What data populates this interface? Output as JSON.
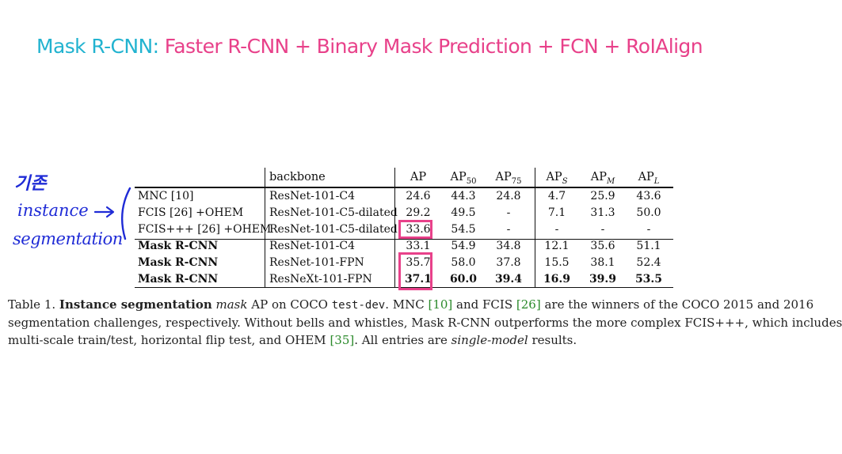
{
  "title": {
    "lead": "Mask R-CNN:",
    "rest": "Faster R-CNN + Binary Mask Prediction + FCN + RoIAlign"
  },
  "handnote": {
    "line1": "기존",
    "line2": "instance",
    "line3": "segmentation",
    "arrow": "→"
  },
  "table": {
    "header": {
      "method": "",
      "backbone": "backbone",
      "ap": "AP",
      "ap50": "AP50",
      "ap75": "AP75",
      "aps": "APS",
      "apm": "APM",
      "apl": "APL"
    },
    "rows": [
      {
        "method": "MNC [10]",
        "backbone": "ResNet-101-C4",
        "ap": "24.6",
        "ap50": "44.3",
        "ap75": "24.8",
        "aps": "4.7",
        "apm": "25.9",
        "apl": "43.6"
      },
      {
        "method": "FCIS [26] +OHEM",
        "backbone": "ResNet-101-C5-dilated",
        "ap": "29.2",
        "ap50": "49.5",
        "ap75": "-",
        "aps": "7.1",
        "apm": "31.3",
        "apl": "50.0"
      },
      {
        "method": "FCIS+++ [26] +OHEM",
        "backbone": "ResNet-101-C5-dilated",
        "ap": "33.6",
        "ap50": "54.5",
        "ap75": "-",
        "aps": "-",
        "apm": "-",
        "apl": "-"
      },
      {
        "method": "Mask R-CNN",
        "backbone": "ResNet-101-C4",
        "ap": "33.1",
        "ap50": "54.9",
        "ap75": "34.8",
        "aps": "12.1",
        "apm": "35.6",
        "apl": "51.1"
      },
      {
        "method": "Mask R-CNN",
        "backbone": "ResNet-101-FPN",
        "ap": "35.7",
        "ap50": "58.0",
        "ap75": "37.8",
        "aps": "15.5",
        "apm": "38.1",
        "apl": "52.4"
      },
      {
        "method": "Mask R-CNN",
        "backbone": "ResNeXt-101-FPN",
        "ap": "37.1",
        "ap50": "60.0",
        "ap75": "39.4",
        "aps": "16.9",
        "apm": "39.9",
        "apl": "53.5"
      }
    ]
  },
  "caption": {
    "label": "Table 1.",
    "heading": "Instance segmentation",
    "mask": "mask",
    "text1": "AP on COCO",
    "testdev": "test-dev",
    "text2": ". MNC",
    "cite10": "[10]",
    "text3": "and FCIS",
    "cite26": "[26]",
    "text4": "are the winners of the COCO 2015 and 2016",
    "line2": "segmentation challenges, respectively. Without bells and whistles, Mask R-CNN outperforms the more complex FCIS+++, which includes",
    "line3a": "multi-scale train/test, horizontal flip test, and OHEM",
    "cite35": "[35]",
    "line3b": ". All entries are",
    "single": "single-model",
    "line3c": "results."
  },
  "colors": {
    "title_lead": "#22b3d0",
    "title_rest": "#e8418a",
    "handwriting": "#1f2bd6",
    "highlight_box": "#e8418a",
    "citation": "#2b8a2b"
  }
}
